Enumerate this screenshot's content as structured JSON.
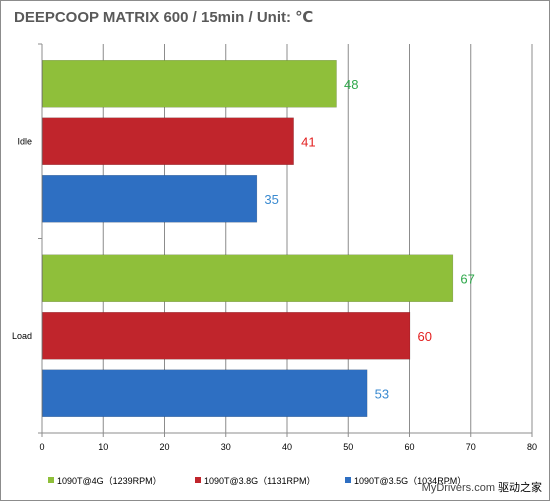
{
  "chart_data": {
    "type": "bar",
    "orientation": "horizontal",
    "title": "DEEPCOOP MATRIX 600 / 15min / Unit: ℃",
    "categories": [
      "Idle",
      "Load"
    ],
    "series": [
      {
        "name": "1090T@4G（1239RPM）",
        "values": [
          48,
          67
        ],
        "color": "#8fbf3a"
      },
      {
        "name": "1090T@3.8G（1131RPM）",
        "values": [
          41,
          60
        ],
        "color": "#c0252c"
      },
      {
        "name": "1090T@3.5G（1034RPM）",
        "values": [
          35,
          53
        ],
        "color": "#2e6fc2"
      }
    ],
    "value_label_colors": [
      "#2ea84a",
      "#e32020",
      "#3a8ad0"
    ],
    "xlim": [
      0,
      80
    ],
    "xticks": [
      0,
      10,
      20,
      30,
      40,
      50,
      60,
      70,
      80
    ],
    "grid": true,
    "legend_position": "bottom"
  },
  "watermark": {
    "site": "MyDrivers.com",
    "brand": "驱动之家"
  }
}
